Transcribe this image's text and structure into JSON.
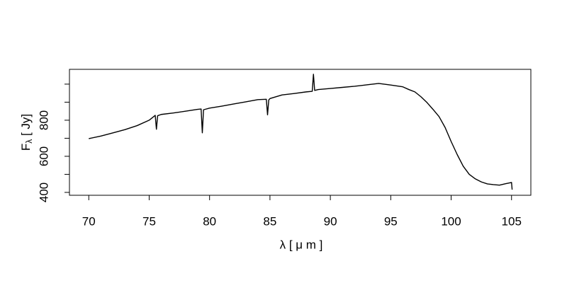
{
  "chart_data": {
    "type": "line",
    "xlabel": "λ [ μ m ]",
    "ylabel": {
      "main": "F",
      "sub": "λ",
      "rest": " [ Jy]"
    },
    "xlim": [
      68.4,
      106.6
    ],
    "ylim": [
      384,
      1082
    ],
    "xticks": [
      70,
      75,
      80,
      85,
      90,
      95,
      100,
      105
    ],
    "yticks": [
      400,
      600,
      800
    ],
    "yminor_ticks": [
      500,
      700,
      900,
      1000
    ],
    "x": [
      70,
      71,
      72,
      73,
      74,
      75,
      75.5,
      75.6,
      75.7,
      76,
      77,
      78,
      79,
      79.3,
      79.4,
      79.5,
      80,
      81,
      82,
      83,
      84,
      84.7,
      84.8,
      84.9,
      85,
      86,
      87,
      88,
      88.5,
      88.6,
      88.7,
      89,
      90,
      91,
      92,
      93,
      94,
      95,
      96,
      96.5,
      97,
      97.5,
      98,
      98.5,
      99,
      99.5,
      100,
      100.5,
      101,
      101.5,
      102,
      102.5,
      103,
      103.5,
      104,
      104.5,
      105,
      105.05
    ],
    "series": [
      {
        "color": "#000000",
        "values": [
          698,
          712,
          730,
          748,
          770,
          800,
          827,
          750,
          825,
          832,
          840,
          850,
          860,
          862,
          730,
          858,
          867,
          878,
          890,
          902,
          914,
          916,
          830,
          912,
          920,
          940,
          948,
          957,
          960,
          1055,
          965,
          970,
          976,
          982,
          988,
          996,
          1004,
          995,
          985,
          970,
          957,
          930,
          898,
          860,
          820,
          760,
          682,
          610,
          545,
          500,
          475,
          458,
          447,
          443,
          440,
          448,
          455,
          415
        ]
      }
    ]
  }
}
